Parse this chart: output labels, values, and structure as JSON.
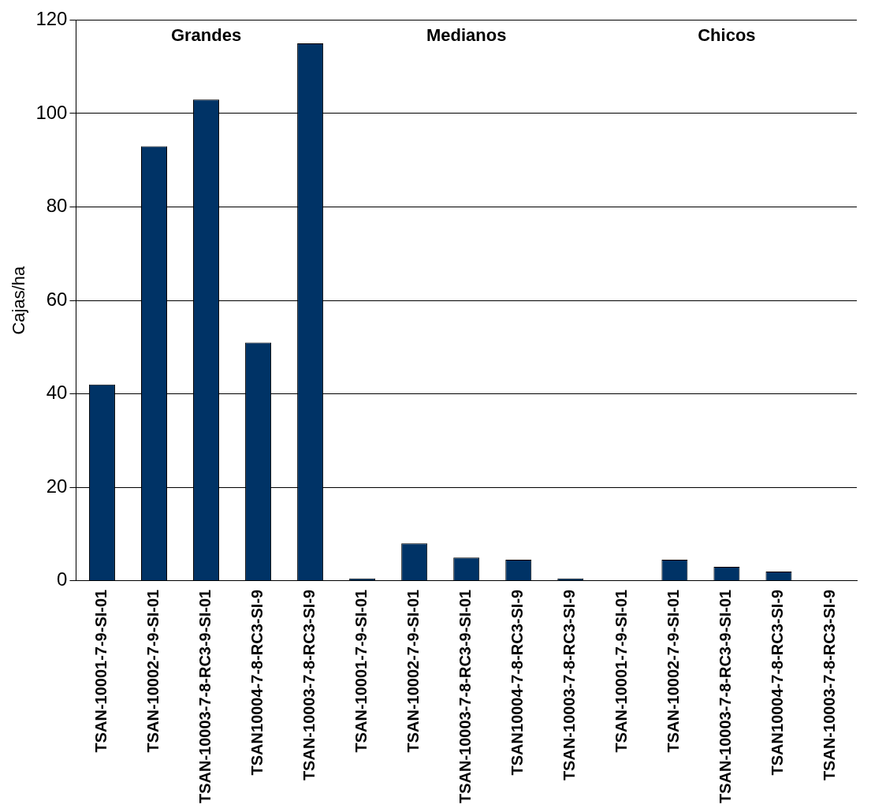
{
  "chart_data": {
    "type": "bar",
    "ylabel": "Cajas/ha",
    "categories": [
      "TSAN-10001-7-9-SI-01",
      "TSAN-10002-7-9-SI-01",
      "TSAN-10003-7-8-RC3-9-SI-01",
      "TSAN10004-7-8-RC3-SI-9",
      "TSAN-10003-7-8-RC3-SI-9",
      "TSAN-10001-7-9-SI-01",
      "TSAN-10002-7-9-SI-01",
      "TSAN-10003-7-8-RC3-9-SI-01",
      "TSAN10004-7-8-RC3-SI-9",
      "TSAN-10003-7-8-RC3-SI-9",
      "TSAN-10001-7-9-SI-01",
      "TSAN-10002-7-9-SI-01",
      "TSAN-10003-7-8-RC3-9-SI-01",
      "TSAN10004-7-8-RC3-SI-9",
      "TSAN-10003-7-8-RC3-SI-9"
    ],
    "values": [
      42,
      93,
      103,
      51,
      115,
      0.5,
      8,
      5,
      4.5,
      0.5,
      0,
      4.5,
      3,
      2,
      0
    ],
    "color": "#003366",
    "ylim": [
      0,
      120
    ],
    "yticks": [
      0,
      20,
      40,
      60,
      80,
      100,
      120
    ],
    "grid": "y",
    "annotations": [
      "Grandes",
      "Medianos",
      "Chicos"
    ]
  }
}
